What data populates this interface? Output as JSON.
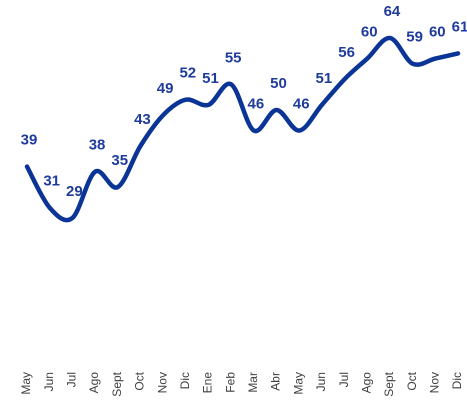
{
  "chart_data": {
    "type": "line",
    "categories": [
      "May",
      "Jun",
      "Jul",
      "Ago",
      "Sept",
      "Oct",
      "Nov",
      "Dic",
      "Ene",
      "Feb",
      "Mar",
      "Abr",
      "May",
      "Jun",
      "Jul",
      "Ago",
      "Sept",
      "Oct",
      "Nov",
      "Dic"
    ],
    "series": [
      {
        "color": "#0a3597",
        "values": [
          39,
          31,
          29,
          38,
          35,
          43,
          49,
          52,
          51,
          55,
          46,
          50,
          46,
          51,
          56,
          60,
          64,
          59,
          60,
          61
        ]
      }
    ]
  }
}
